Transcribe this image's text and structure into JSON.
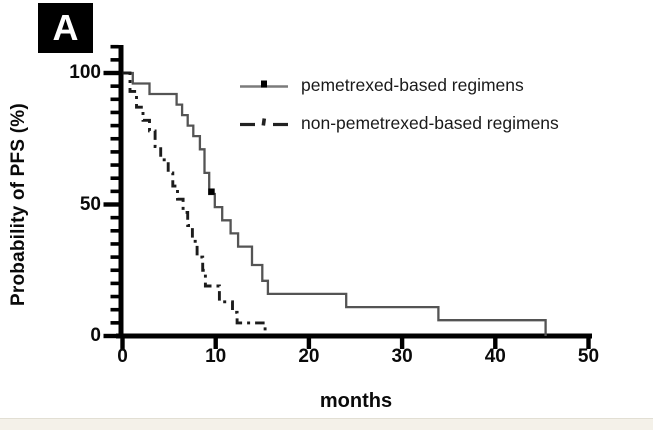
{
  "panel_label": "A",
  "footer_strip_color": "#f4f1e9",
  "chart_data": {
    "type": "line",
    "subtype": "kaplan-meier-step-curves",
    "title": "",
    "xlabel": "months",
    "ylabel": "Probability of PFS (%)",
    "xlim": [
      0,
      50
    ],
    "ylim": [
      0,
      100
    ],
    "xticks": [
      0,
      10,
      20,
      30,
      40,
      50
    ],
    "yticks": [
      0,
      50,
      100
    ],
    "y_minor_tick_step": 5,
    "grid": false,
    "legend_position": "top-right-inside",
    "axis_color": "#000000",
    "series": [
      {
        "name": "pemetrexed-based regimens",
        "line_style": "solid",
        "color": "#545454",
        "censor_marks": [
          [
            9.55,
            54
          ]
        ],
        "points": [
          [
            0,
            100
          ],
          [
            1.1,
            96
          ],
          [
            2.9,
            92
          ],
          [
            5.8,
            88
          ],
          [
            6.4,
            84
          ],
          [
            7.0,
            80
          ],
          [
            7.6,
            76
          ],
          [
            8.3,
            71
          ],
          [
            8.8,
            62
          ],
          [
            9.3,
            54
          ],
          [
            9.9,
            49
          ],
          [
            10.7,
            44
          ],
          [
            11.6,
            39
          ],
          [
            12.4,
            34
          ],
          [
            13.9,
            27
          ],
          [
            15.0,
            21
          ],
          [
            15.6,
            16
          ],
          [
            24.0,
            11
          ],
          [
            33.9,
            6
          ],
          [
            45.4,
            0
          ]
        ]
      },
      {
        "name": "non-pemetrexed-based regimens",
        "line_style": "dash-dot",
        "color": "#1c1c1c",
        "censor_marks": [],
        "points": [
          [
            0,
            100
          ],
          [
            0.8,
            93
          ],
          [
            1.5,
            87
          ],
          [
            2.2,
            82
          ],
          [
            2.9,
            78
          ],
          [
            3.5,
            72
          ],
          [
            4.1,
            67
          ],
          [
            4.9,
            62
          ],
          [
            5.4,
            57
          ],
          [
            5.9,
            52
          ],
          [
            6.5,
            47
          ],
          [
            7.0,
            42
          ],
          [
            7.5,
            36
          ],
          [
            8.0,
            30
          ],
          [
            8.6,
            25
          ],
          [
            8.9,
            19
          ],
          [
            10.4,
            13
          ],
          [
            11.8,
            9
          ],
          [
            12.3,
            5
          ],
          [
            15.3,
            1.5
          ]
        ]
      }
    ]
  }
}
